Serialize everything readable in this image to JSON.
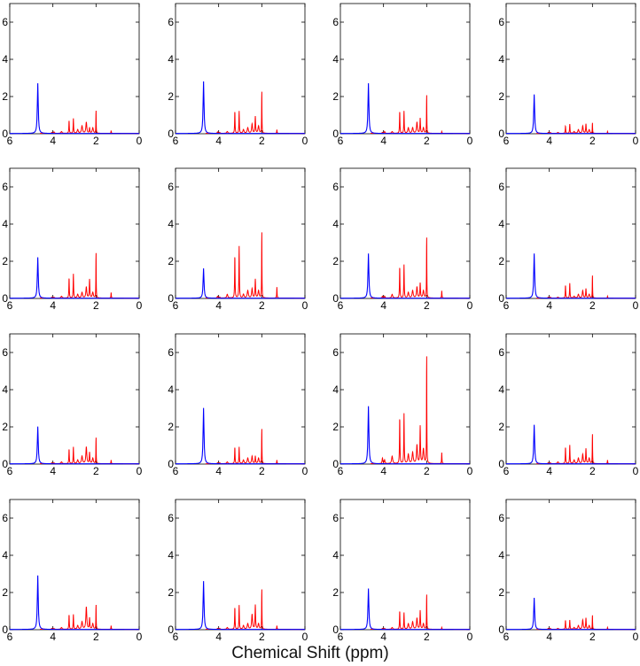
{
  "figure": {
    "xlabel": "Chemical Shift (ppm)",
    "rows": 4,
    "cols": 4
  },
  "chart_data": {
    "type": "line",
    "xlim": [
      6,
      0
    ],
    "ylim": [
      0,
      7
    ],
    "x_ticks": [
      6,
      4,
      2,
      0
    ],
    "y_ticks": [
      0,
      2,
      4,
      6
    ],
    "colors": {
      "water": "#0000ff",
      "metabolites": "#ff0000",
      "axes": "#000000"
    },
    "peak_positions_ppm": [
      4.7,
      4.05,
      3.95,
      3.6,
      3.25,
      3.05,
      2.85,
      2.65,
      2.45,
      2.3,
      2.15,
      2.0,
      1.3
    ],
    "panels": [
      {
        "water": 2.7,
        "metabolites": [
          0.1,
          0.05,
          0.08,
          0.1,
          0.7,
          0.8,
          0.2,
          0.4,
          0.6,
          0.3,
          0.3,
          1.3,
          0.15
        ]
      },
      {
        "water": 2.8,
        "metabolites": [
          0.1,
          0.08,
          0.05,
          0.1,
          1.2,
          1.2,
          0.2,
          0.3,
          0.5,
          0.9,
          0.4,
          2.4,
          0.2
        ]
      },
      {
        "water": 2.7,
        "metabolites": [
          0.1,
          0.05,
          0.1,
          0.1,
          1.2,
          1.2,
          0.3,
          0.3,
          0.6,
          0.8,
          0.3,
          2.2,
          0.1
        ]
      },
      {
        "water": 2.1,
        "metabolites": [
          0.05,
          0.05,
          0.05,
          0.05,
          0.4,
          0.5,
          0.1,
          0.2,
          0.4,
          0.5,
          0.2,
          0.6,
          0.1
        ]
      },
      {
        "water": 2.2,
        "metabolites": [
          0.1,
          0.05,
          0.05,
          0.1,
          1.1,
          1.3,
          0.2,
          0.3,
          0.6,
          1.0,
          0.3,
          2.6,
          0.3
        ]
      },
      {
        "water": 1.6,
        "metabolites": [
          0.2,
          0.1,
          0.05,
          0.2,
          2.3,
          2.8,
          0.2,
          0.4,
          0.5,
          1.0,
          0.4,
          3.8,
          0.6
        ]
      },
      {
        "water": 2.4,
        "metabolites": [
          0.2,
          0.1,
          0.1,
          0.2,
          1.7,
          1.8,
          0.3,
          0.4,
          0.6,
          0.8,
          0.4,
          3.5,
          0.4
        ]
      },
      {
        "water": 2.4,
        "metabolites": [
          0.05,
          0.05,
          0.05,
          0.05,
          0.7,
          0.8,
          0.1,
          0.2,
          0.4,
          0.5,
          0.2,
          1.3,
          0.1
        ]
      },
      {
        "water": 2.0,
        "metabolites": [
          0.1,
          0.05,
          0.05,
          0.1,
          0.8,
          0.9,
          0.2,
          0.4,
          0.9,
          0.6,
          0.3,
          1.5,
          0.2
        ]
      },
      {
        "water": 3.0,
        "metabolites": [
          0.1,
          0.05,
          0.05,
          0.1,
          0.9,
          0.9,
          0.2,
          0.3,
          0.4,
          0.4,
          0.3,
          2.0,
          0.2
        ]
      },
      {
        "water": 3.1,
        "metabolites": [
          0.4,
          0.3,
          0.2,
          0.4,
          2.5,
          2.7,
          0.5,
          0.6,
          1.0,
          2.0,
          0.8,
          6.2,
          0.6
        ]
      },
      {
        "water": 2.1,
        "metabolites": [
          0.05,
          0.05,
          0.05,
          0.1,
          0.9,
          1.0,
          0.2,
          0.3,
          0.5,
          0.8,
          0.3,
          1.7,
          0.2
        ]
      },
      {
        "water": 2.9,
        "metabolites": [
          0.1,
          0.05,
          0.05,
          0.1,
          0.8,
          0.8,
          0.2,
          0.4,
          1.2,
          0.6,
          0.3,
          1.4,
          0.2
        ]
      },
      {
        "water": 2.6,
        "metabolites": [
          0.1,
          0.05,
          0.05,
          0.1,
          1.2,
          1.3,
          0.2,
          0.3,
          0.8,
          1.3,
          0.3,
          2.3,
          0.2
        ]
      },
      {
        "water": 2.2,
        "metabolites": [
          0.1,
          0.05,
          0.05,
          0.1,
          1.0,
          0.9,
          0.3,
          0.4,
          0.6,
          1.0,
          0.3,
          2.0,
          0.1
        ]
      },
      {
        "water": 1.7,
        "metabolites": [
          0.05,
          0.05,
          0.05,
          0.05,
          0.5,
          0.5,
          0.1,
          0.2,
          0.5,
          0.6,
          0.2,
          0.8,
          0.1
        ]
      }
    ]
  }
}
